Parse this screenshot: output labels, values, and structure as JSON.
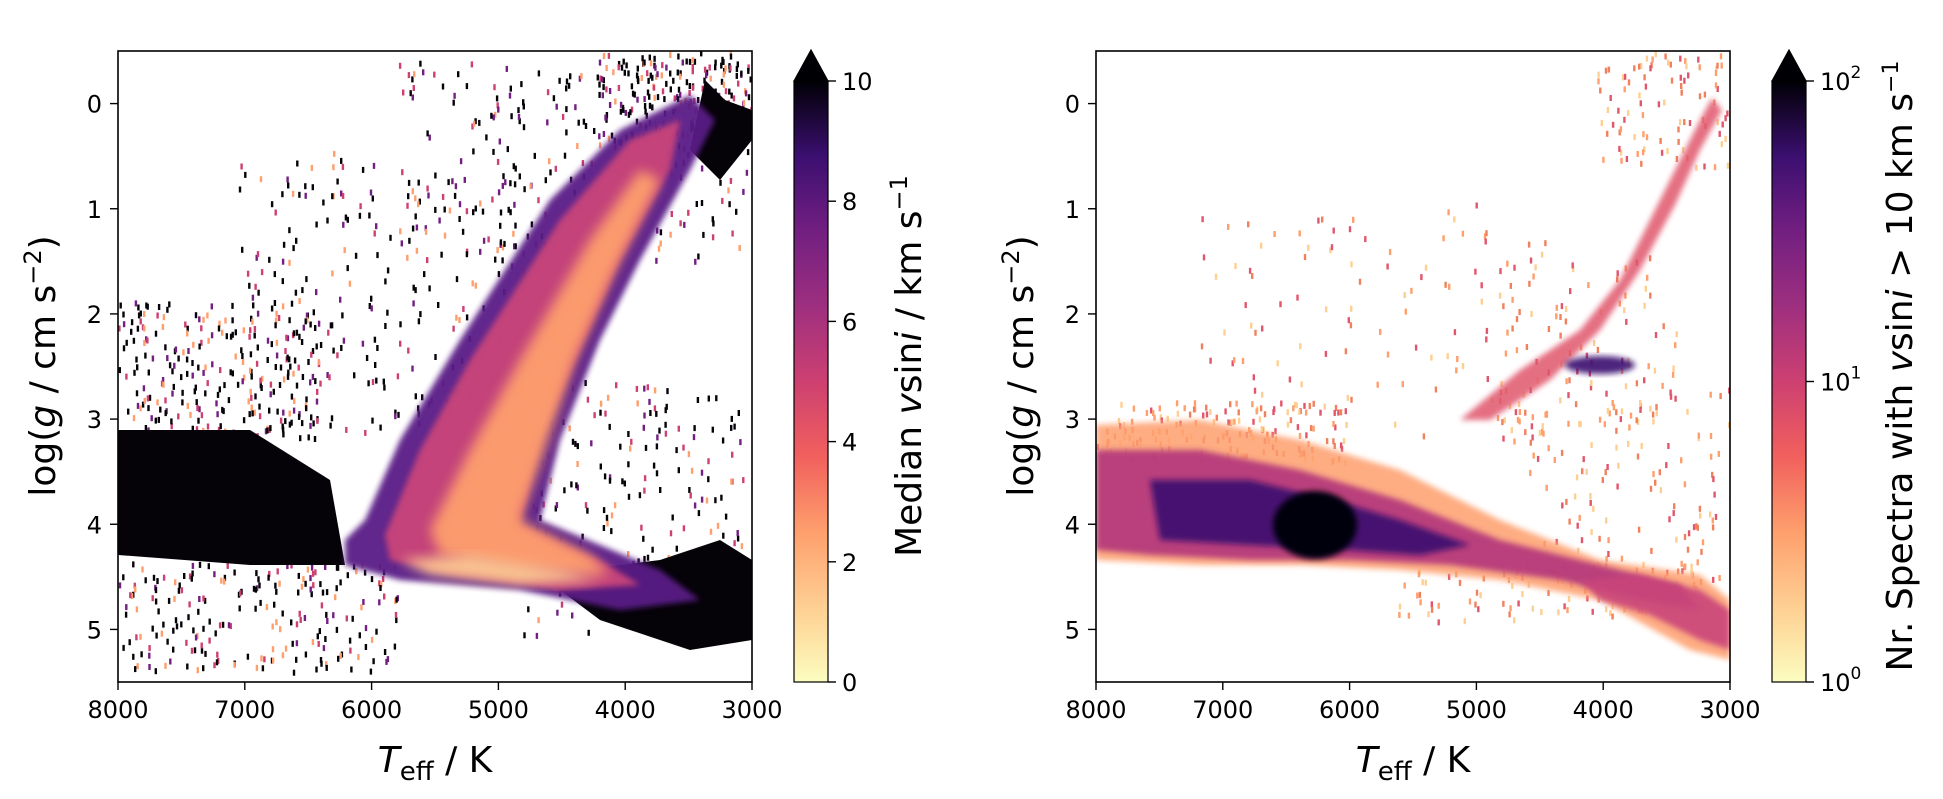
{
  "chart_data": [
    {
      "type": "heatmap",
      "title": "",
      "xlabel": {
        "main": "T",
        "sub": "eff",
        "rest": " / K"
      },
      "ylabel": {
        "pre": "log(",
        "g": "g",
        "mid": " / cm s",
        "sup": "−2",
        "post": ")"
      },
      "xlim": [
        8000,
        3000
      ],
      "ylim": [
        5.5,
        -0.5
      ],
      "x_ticks": [
        "8000",
        "7000",
        "6000",
        "5000",
        "4000",
        "3000"
      ],
      "y_ticks": [
        "0",
        "1",
        "2",
        "3",
        "4",
        "5"
      ],
      "colormap": "magma_r",
      "colorbar": {
        "label": {
          "pre": "Median ",
          "v": "v",
          "mid": "sin",
          "i": "i",
          "post": " / km s",
          "sup": "−1"
        },
        "scale": "linear",
        "range": [
          0,
          10
        ],
        "extend": "max",
        "ticks": [
          "0",
          "2",
          "4",
          "6",
          "8",
          "10"
        ]
      },
      "features": [
        {
          "name": "main_sequence",
          "teff": [
            8000,
            5500
          ],
          "logg": [
            3.8,
            4.3
          ],
          "median_vsini": 10
        },
        {
          "name": "turnoff",
          "teff": [
            6200,
            5200
          ],
          "logg": [
            4.0,
            4.3
          ],
          "median_vsini": 6
        },
        {
          "name": "red_giant_branch",
          "teff": [
            5200,
            3500
          ],
          "logg": [
            4.2,
            0.3
          ],
          "median_vsini": 2
        },
        {
          "name": "k_dwarfs",
          "teff": [
            5200,
            3800
          ],
          "logg": [
            4.4,
            4.6
          ],
          "median_vsini": 3
        },
        {
          "name": "m_dwarfs",
          "teff": [
            4500,
            3000
          ],
          "logg": [
            4.4,
            5.3
          ],
          "median_vsini": 10
        }
      ]
    },
    {
      "type": "heatmap",
      "title": "",
      "xlabel": {
        "main": "T",
        "sub": "eff",
        "rest": " / K"
      },
      "ylabel": {
        "pre": "log(",
        "g": "g",
        "mid": " / cm s",
        "sup": "−2",
        "post": ")"
      },
      "xlim": [
        8000,
        3000
      ],
      "ylim": [
        5.5,
        -0.5
      ],
      "x_ticks": [
        "8000",
        "7000",
        "6000",
        "5000",
        "4000",
        "3000"
      ],
      "y_ticks": [
        "0",
        "1",
        "2",
        "3",
        "4",
        "5"
      ],
      "colormap": "magma_r",
      "colorbar": {
        "label": {
          "pre": "Nr. Spectra with ",
          "v": "v",
          "mid": "sin",
          "i": "i",
          "post": " > 10 km s",
          "sup": "−1"
        },
        "scale": "log",
        "range": [
          1,
          100
        ],
        "extend": "max",
        "ticks": [
          {
            "base": "10",
            "exp": "0"
          },
          {
            "base": "10",
            "exp": "1"
          },
          {
            "base": "10",
            "exp": "2"
          }
        ]
      },
      "features": [
        {
          "name": "main_sequence",
          "teff": [
            8000,
            4500
          ],
          "logg": [
            3.5,
            4.3
          ],
          "count": 20
        },
        {
          "name": "f_star_peak",
          "teff": [
            6500,
            6000
          ],
          "logg": [
            4.0,
            4.3
          ],
          "count": 100
        },
        {
          "name": "red_clump",
          "teff": [
            4900,
            4700
          ],
          "logg": [
            2.4,
            2.6
          ],
          "count": 30
        },
        {
          "name": "giant_branch",
          "teff": [
            4800,
            3300
          ],
          "logg": [
            2.8,
            0.3
          ],
          "count": 5
        },
        {
          "name": "cool_dwarfs",
          "teff": [
            4500,
            3100
          ],
          "logg": [
            4.4,
            5.1
          ],
          "count": 8
        }
      ]
    }
  ]
}
